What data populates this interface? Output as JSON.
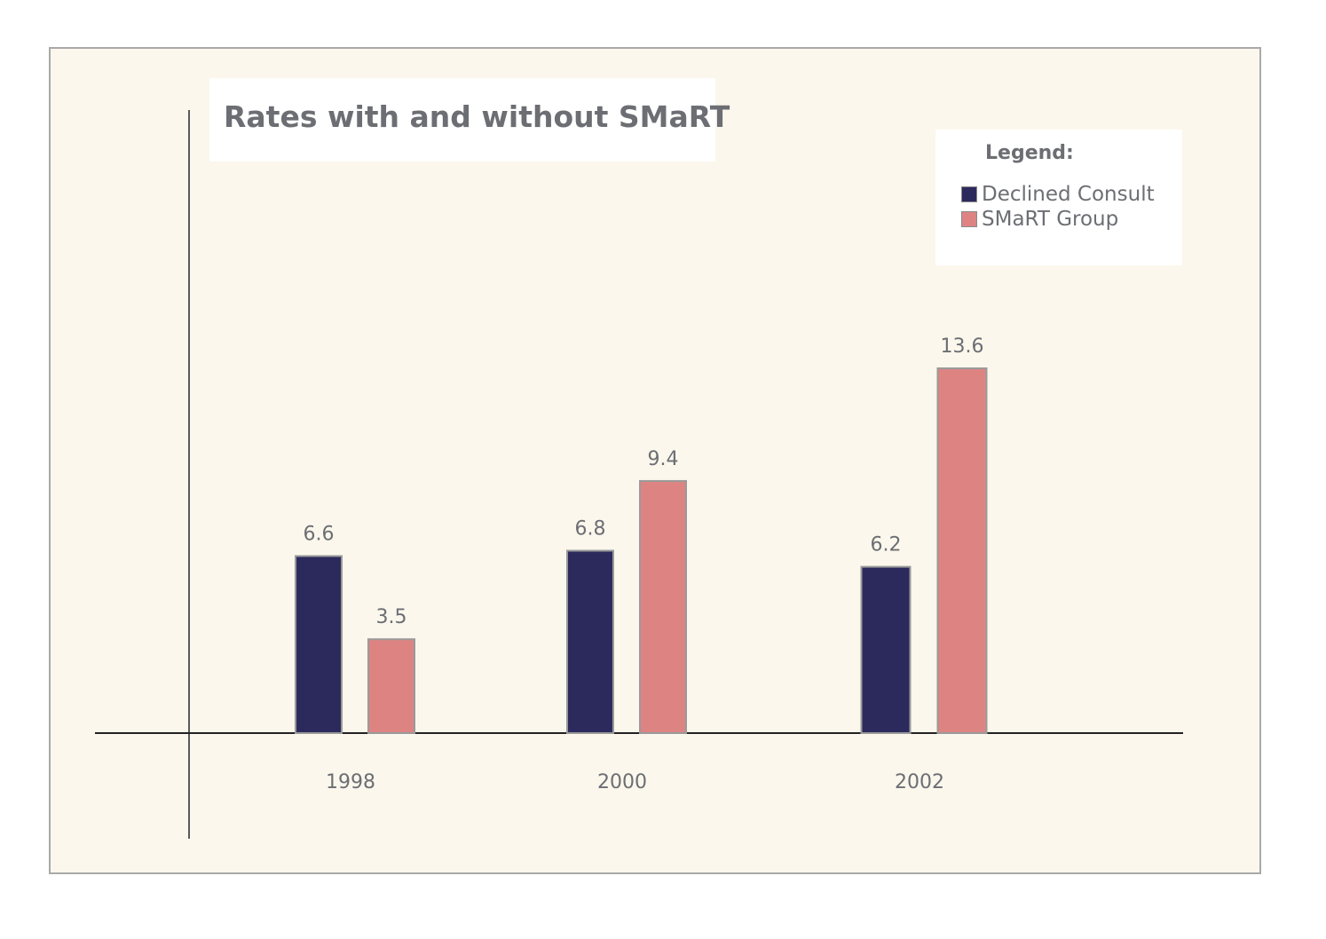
{
  "chart_data": {
    "type": "bar",
    "title": "Rates with and without SMaRT",
    "categories": [
      "1998",
      "2000",
      "2002"
    ],
    "series": [
      {
        "name": "Declined Consult",
        "values": [
          6.6,
          6.8,
          6.2
        ],
        "color": "#2c2a5c"
      },
      {
        "name": "SMaRT Group",
        "values": [
          3.5,
          9.4,
          13.6
        ],
        "color": "#dd8483"
      }
    ],
    "xlabel": "",
    "ylabel": "",
    "ylim": [
      0,
      13.6
    ],
    "grid": false,
    "legend": {
      "title": "Legend:",
      "placement": "top-right"
    },
    "data_labels": true
  }
}
